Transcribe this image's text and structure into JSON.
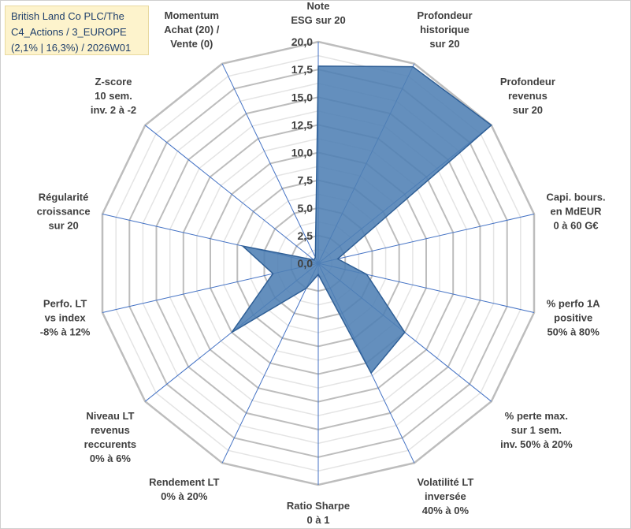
{
  "info": {
    "lines": [
      "British Land Co PLC/The",
      "C4_Actions / 3_EUROPE",
      "(2,1% | 16,3%) / 2026W01"
    ]
  },
  "colors": {
    "fill": "#4f7fb4",
    "stroke": "#2f5f96",
    "grid": "#bfbfbf",
    "spoke": "#4472c4"
  },
  "chart_data": {
    "type": "radar",
    "rmax": 20,
    "tick_values": [
      0,
      2.5,
      5,
      7.5,
      10,
      12.5,
      15,
      17.5,
      20
    ],
    "tick_labels": [
      "0,0",
      "2,5",
      "5,0",
      "7,5",
      "10,0",
      "12,5",
      "15,0",
      "17,5",
      "20,0"
    ],
    "axes": [
      {
        "label": [
          "Note",
          "ESG sur 20"
        ],
        "value": 17.8
      },
      {
        "label": [
          "Profondeur",
          "historique",
          "sur 20"
        ],
        "value": 19.7
      },
      {
        "label": [
          "Profondeur",
          "revenus",
          "sur 20"
        ],
        "value": 20.0
      },
      {
        "label": [
          "Capi. bours.",
          "en MdEUR",
          "0 à 60 G€"
        ],
        "value": 1.8
      },
      {
        "label": [
          "% perfo 1A",
          "positive",
          "50% à 80%"
        ],
        "value": 4.5
      },
      {
        "label": [
          "% perte max.",
          "sur 1 sem.",
          "inv. 50% à 20%"
        ],
        "value": 10.0
      },
      {
        "label": [
          "Volatilité LT",
          "inversée",
          "40% à 0%"
        ],
        "value": 11.0
      },
      {
        "label": [
          "Ratio Sharpe",
          "0 à 1"
        ],
        "value": 1.0
      },
      {
        "label": [
          "Rendement LT",
          "0% à 20%"
        ],
        "value": 2.5
      },
      {
        "label": [
          "Niveau LT",
          "revenus",
          "reccurents",
          "0% à 6%"
        ],
        "value": 10.0
      },
      {
        "label": [
          "Perfo. LT",
          "vs index",
          "-8% à 12%"
        ],
        "value": 4.2
      },
      {
        "label": [
          "Régularité",
          "croissance",
          "sur 20"
        ],
        "value": 7.0
      },
      {
        "label": [
          "Z-score",
          "10 sem.",
          "inv. 2 à -2"
        ],
        "value": 0.5
      },
      {
        "label": [
          "Momentum",
          "Achat (20) /",
          "Vente (0)"
        ],
        "value": 0.6
      }
    ]
  }
}
